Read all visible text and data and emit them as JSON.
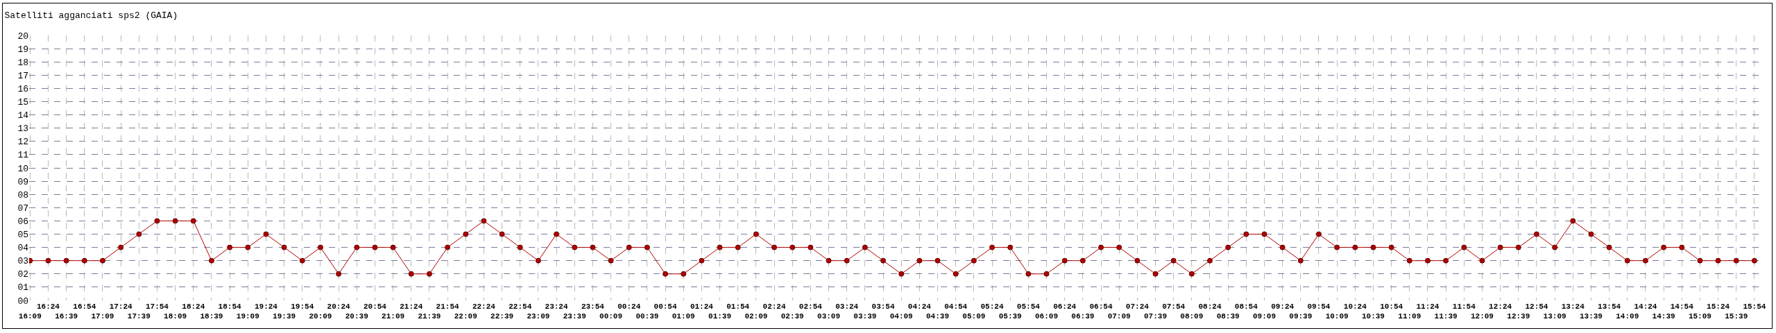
{
  "chart_data": {
    "type": "line",
    "title": "Satelliti agganciati sps2 (GAIA)",
    "categories": [
      "16:09",
      "16:24",
      "16:39",
      "16:54",
      "17:09",
      "17:24",
      "17:39",
      "17:54",
      "18:09",
      "18:24",
      "18:39",
      "18:54",
      "19:09",
      "19:24",
      "19:39",
      "19:54",
      "20:09",
      "20:24",
      "20:39",
      "20:54",
      "21:09",
      "21:24",
      "21:39",
      "21:54",
      "22:09",
      "22:24",
      "22:39",
      "22:54",
      "23:09",
      "23:24",
      "23:39",
      "23:54",
      "00:09",
      "00:24",
      "00:39",
      "00:54",
      "01:09",
      "01:24",
      "01:39",
      "01:54",
      "02:09",
      "02:24",
      "02:39",
      "02:54",
      "03:09",
      "03:24",
      "03:39",
      "03:54",
      "04:09",
      "04:24",
      "04:39",
      "04:54",
      "05:09",
      "05:24",
      "05:39",
      "05:54",
      "06:09",
      "06:24",
      "06:39",
      "06:54",
      "07:09",
      "07:24",
      "07:39",
      "07:54",
      "08:09",
      "08:24",
      "08:39",
      "08:54",
      "09:09",
      "09:24",
      "09:39",
      "09:54",
      "10:09",
      "10:24",
      "10:39",
      "10:54",
      "11:09",
      "11:24",
      "11:39",
      "11:54",
      "12:09",
      "12:24",
      "12:39",
      "12:54",
      "13:09",
      "13:24",
      "13:39",
      "13:54",
      "14:09",
      "14:24",
      "14:39",
      "14:54",
      "15:09",
      "15:24",
      "15:39",
      "15:54"
    ],
    "series": [
      {
        "color": "#b00000",
        "values": [
          3,
          3,
          3,
          3,
          3,
          4,
          5,
          6,
          6,
          6,
          3,
          4,
          4,
          5,
          4,
          3,
          4,
          2,
          4,
          4,
          4,
          2,
          2,
          4,
          5,
          6,
          5,
          4,
          3,
          5,
          4,
          4,
          3,
          4,
          4,
          2,
          2,
          3,
          4,
          4,
          5,
          4,
          4,
          4,
          3,
          3,
          4,
          3,
          2,
          3,
          3,
          2,
          3,
          4,
          4,
          2,
          2,
          3,
          3,
          4,
          4,
          3,
          2,
          3,
          2,
          3,
          4,
          5,
          5,
          4,
          3,
          5,
          4,
          4,
          4,
          4,
          3,
          3,
          3,
          4,
          3,
          4,
          4,
          5,
          4,
          6,
          5,
          4,
          3,
          3,
          4,
          4,
          3,
          3,
          3,
          3
        ]
      }
    ],
    "ylim": [
      0,
      20
    ],
    "yticks": [
      {
        "value": 0,
        "label": "00"
      },
      {
        "value": 1,
        "label": "01"
      },
      {
        "value": 2,
        "label": "02"
      },
      {
        "value": 3,
        "label": "03"
      },
      {
        "value": 4,
        "label": "04"
      },
      {
        "value": 5,
        "label": "05"
      },
      {
        "value": 6,
        "label": "06"
      },
      {
        "value": 7,
        "label": "07"
      },
      {
        "value": 8,
        "label": "08"
      },
      {
        "value": 9,
        "label": "09"
      },
      {
        "value": 10,
        "label": "10"
      },
      {
        "value": 11,
        "label": "11"
      },
      {
        "value": 12,
        "label": "12"
      },
      {
        "value": 13,
        "label": "13"
      },
      {
        "value": 14,
        "label": "14"
      },
      {
        "value": 15,
        "label": "15"
      },
      {
        "value": 16,
        "label": "16"
      },
      {
        "value": 17,
        "label": "17"
      },
      {
        "value": 18,
        "label": "18"
      },
      {
        "value": 19,
        "label": "19"
      },
      {
        "value": 20,
        "label": "20"
      }
    ],
    "grid": true,
    "marker": "circle",
    "line_style": "solid"
  }
}
